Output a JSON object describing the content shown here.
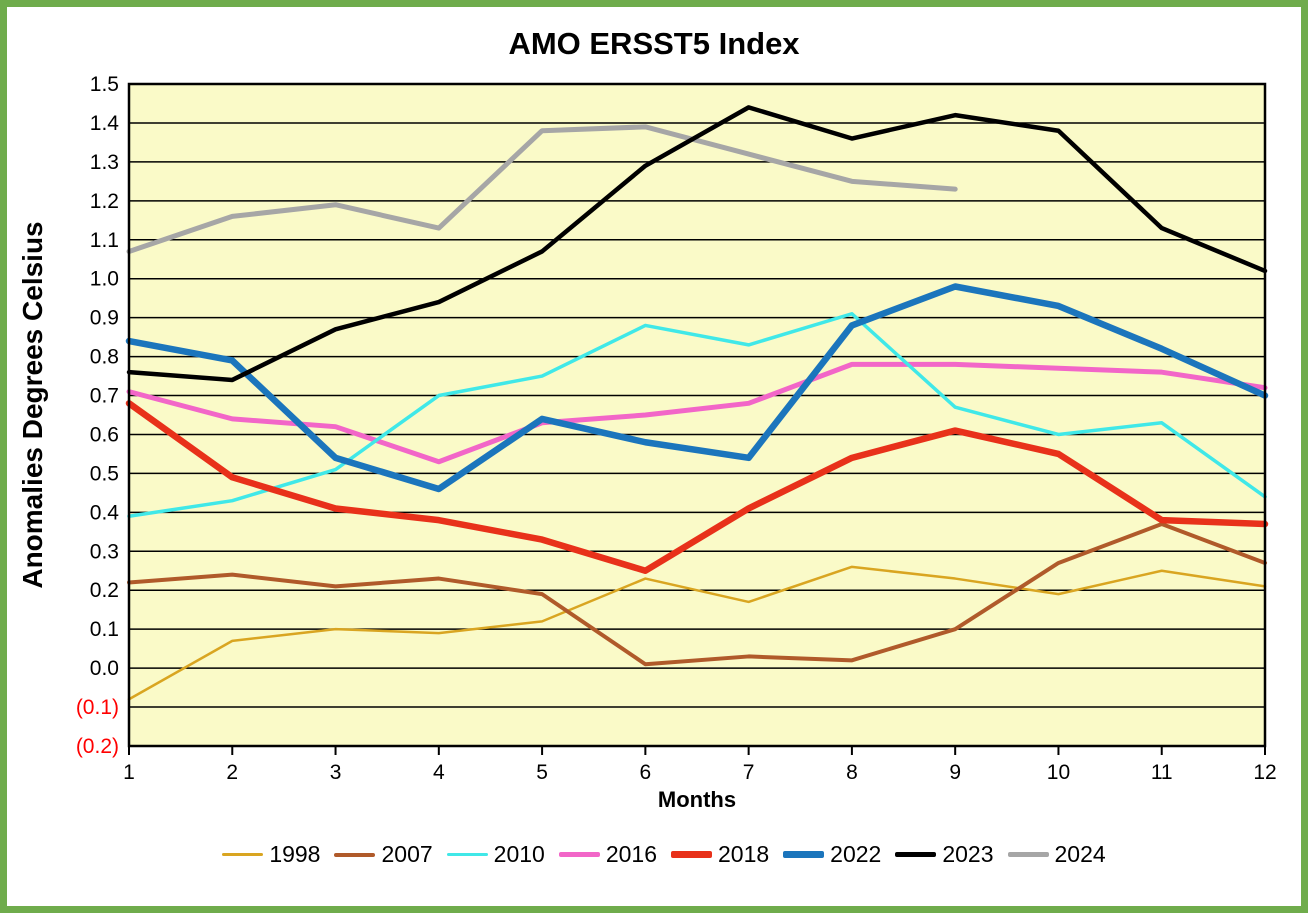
{
  "title": "AMO ERSST5 Index",
  "y_axis_title": "Anomalies Degrees Celsius",
  "x_axis_title": "Months",
  "colors": {
    "frame_border": "#6FAC4C",
    "plot_background": "#FAFAC8",
    "gridline": "#000000",
    "tick_label": "#000000",
    "negative_tick_label": "#FF0000"
  },
  "chart_data": {
    "type": "line",
    "title": "AMO ERSST5 Index",
    "xlabel": "Months",
    "ylabel": "Anomalies Degrees Celsius",
    "x": [
      1,
      2,
      3,
      4,
      5,
      6,
      7,
      8,
      9,
      10,
      11,
      12
    ],
    "x_tick_labels": [
      "1",
      "2",
      "3",
      "4",
      "5",
      "6",
      "7",
      "8",
      "9",
      "10",
      "11",
      "12"
    ],
    "ylim": [
      -0.2,
      1.5
    ],
    "ytick_step": 0.1,
    "y_tick_labels": [
      "1.5",
      "1.4",
      "1.3",
      "1.2",
      "1.1",
      "1.0",
      "0.9",
      "0.8",
      "0.7",
      "0.6",
      "0.5",
      "0.4",
      "0.3",
      "0.2",
      "0.1",
      "0.0",
      "(0.1)",
      "(0.2)"
    ],
    "grid": "horizontal",
    "legend_position": "bottom",
    "draw_order": [
      "1998",
      "2007",
      "2016",
      "2010",
      "2018",
      "2022",
      "2024",
      "2023"
    ],
    "series": [
      {
        "name": "1998",
        "color": "#D9A521",
        "line_width": 2.5,
        "values": [
          -0.08,
          0.07,
          0.1,
          0.09,
          0.12,
          0.23,
          0.17,
          0.26,
          0.23,
          0.19,
          0.25,
          0.21
        ]
      },
      {
        "name": "2007",
        "color": "#B05A2A",
        "line_width": 4,
        "values": [
          0.22,
          0.24,
          0.21,
          0.23,
          0.19,
          0.01,
          0.03,
          0.02,
          0.1,
          0.27,
          0.37,
          0.27
        ]
      },
      {
        "name": "2010",
        "color": "#40E8E8",
        "line_width": 3.5,
        "values": [
          0.39,
          0.43,
          0.51,
          0.7,
          0.75,
          0.88,
          0.83,
          0.91,
          0.67,
          0.6,
          0.63,
          0.44
        ]
      },
      {
        "name": "2016",
        "color": "#F266C8",
        "line_width": 5,
        "values": [
          0.71,
          0.64,
          0.62,
          0.53,
          0.63,
          0.65,
          0.68,
          0.78,
          0.78,
          0.77,
          0.76,
          0.72
        ]
      },
      {
        "name": "2018",
        "color": "#E8311A",
        "line_width": 6.5,
        "values": [
          0.68,
          0.49,
          0.41,
          0.38,
          0.33,
          0.25,
          0.41,
          0.54,
          0.61,
          0.55,
          0.38,
          0.37
        ]
      },
      {
        "name": "2022",
        "color": "#1B75BC",
        "line_width": 6.5,
        "values": [
          0.84,
          0.79,
          0.54,
          0.46,
          0.64,
          0.58,
          0.54,
          0.88,
          0.98,
          0.93,
          0.82,
          0.7
        ]
      },
      {
        "name": "2023",
        "color": "#000000",
        "line_width": 4.5,
        "values": [
          0.76,
          0.74,
          0.87,
          0.94,
          1.07,
          1.29,
          1.44,
          1.36,
          1.42,
          1.38,
          1.13,
          1.02
        ]
      },
      {
        "name": "2024",
        "color": "#A6A6A6",
        "line_width": 5,
        "values": [
          1.07,
          1.16,
          1.19,
          1.13,
          1.38,
          1.39,
          1.32,
          1.25,
          1.23,
          null,
          null,
          null
        ]
      }
    ]
  }
}
